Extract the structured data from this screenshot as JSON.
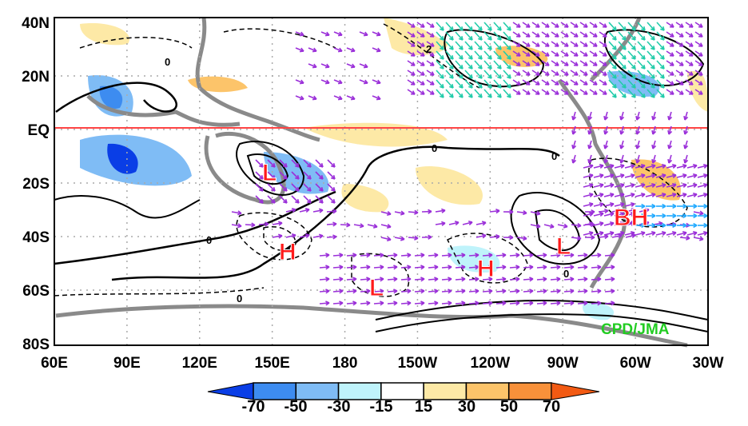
{
  "map": {
    "lat_labels": [
      "40N",
      "20N",
      "EQ",
      "20S",
      "40S",
      "60S",
      "80S"
    ],
    "lon_labels": [
      "60E",
      "90E",
      "120E",
      "150E",
      "180",
      "150W",
      "120W",
      "90W",
      "60W",
      "30W"
    ],
    "centers": [
      "L",
      "H",
      "L",
      "H",
      "L",
      "BH"
    ],
    "contour_labels": [
      "0",
      "0",
      "0",
      "0",
      "0",
      "0",
      "2"
    ],
    "credit": "CPD/JMA",
    "colors": {
      "equator": "#ff4444",
      "vector": "#9b30d9",
      "vector_strong": "#22ccaa",
      "land": "#888888"
    }
  },
  "colorbar": {
    "labels": [
      "-70",
      "-50",
      "-30",
      "-15",
      "15",
      "30",
      "50",
      "70"
    ],
    "colors": [
      "#0a3ee6",
      "#3d8cf0",
      "#7fbcf5",
      "#bff3fb",
      "#ffffff",
      "#fde9a6",
      "#fcc46a",
      "#f8913a",
      "#f25a13"
    ]
  }
}
